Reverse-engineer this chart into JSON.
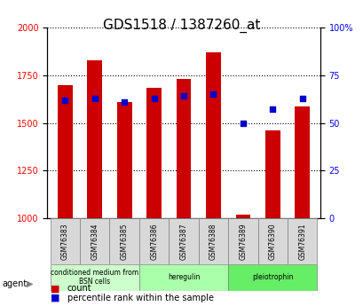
{
  "title": "GDS1518 / 1387260_at",
  "samples": [
    "GSM76383",
    "GSM76384",
    "GSM76385",
    "GSM76386",
    "GSM76387",
    "GSM76388",
    "GSM76389",
    "GSM76390",
    "GSM76391"
  ],
  "counts": [
    1700,
    1830,
    1610,
    1685,
    1730,
    1870,
    1020,
    1460,
    1585
  ],
  "percentiles": [
    62,
    63,
    61,
    63,
    64,
    65,
    50,
    57,
    63
  ],
  "ylim_left": [
    1000,
    2000
  ],
  "ylim_right": [
    0,
    100
  ],
  "yticks_left": [
    1000,
    1250,
    1500,
    1750,
    2000
  ],
  "yticks_right": [
    0,
    25,
    50,
    75,
    100
  ],
  "bar_color": "#cc0000",
  "dot_color": "#0000cc",
  "bar_width": 0.5,
  "groups": [
    {
      "label": "conditioned medium from\nBSN cells",
      "start": 0,
      "end": 3,
      "color": "#ccffcc"
    },
    {
      "label": "heregulin",
      "start": 3,
      "end": 6,
      "color": "#aaffaa"
    },
    {
      "label": "pleiotrophin",
      "start": 6,
      "end": 9,
      "color": "#66ee66"
    }
  ],
  "agent_label": "agent",
  "legend_count_label": "count",
  "legend_pct_label": "percentile rank within the sample",
  "title_fontsize": 11,
  "tick_fontsize": 7,
  "label_fontsize": 8
}
